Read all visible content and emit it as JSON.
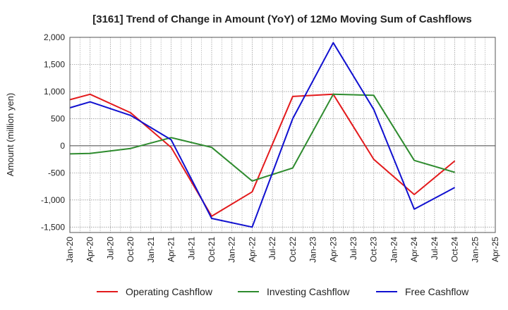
{
  "chart_data": {
    "type": "line",
    "title": "[3161]  Trend of Change in Amount (YoY) of 12Mo Moving Sum of Cashflows",
    "xlabel": "",
    "ylabel": "Amount (million yen)",
    "ylim": [
      -1600,
      2000
    ],
    "yticks": [
      2000,
      1500,
      1000,
      500,
      0,
      -500,
      -1000,
      -1500
    ],
    "ytick_labels": [
      "2,000",
      "1,500",
      "1,000",
      "500",
      "0",
      "-500",
      "-1,000",
      "-1,500"
    ],
    "categories": [
      "Jan-20",
      "Apr-20",
      "Jul-20",
      "Oct-20",
      "Jan-21",
      "Apr-21",
      "Jul-21",
      "Oct-21",
      "Jan-22",
      "Apr-22",
      "Jul-22",
      "Oct-22",
      "Jan-23",
      "Apr-23",
      "Jul-23",
      "Oct-23",
      "Jan-24",
      "Apr-24",
      "Jul-24",
      "Oct-24",
      "Jan-25",
      "Apr-25"
    ],
    "grid": true,
    "legend_position": "bottom",
    "series": [
      {
        "name": "Operating Cashflow",
        "color": "#e31a1c",
        "points": [
          {
            "x": "Jan-20",
            "y": 850
          },
          {
            "x": "Apr-20",
            "y": 950
          },
          {
            "x": "Oct-20",
            "y": 610
          },
          {
            "x": "Apr-21",
            "y": -30
          },
          {
            "x": "Oct-21",
            "y": -1300
          },
          {
            "x": "Apr-22",
            "y": -850
          },
          {
            "x": "Oct-22",
            "y": 910
          },
          {
            "x": "Apr-23",
            "y": 950
          },
          {
            "x": "Oct-23",
            "y": -250
          },
          {
            "x": "Apr-24",
            "y": -900
          },
          {
            "x": "Oct-24",
            "y": -280
          }
        ]
      },
      {
        "name": "Investing Cashflow",
        "color": "#2e8b2e",
        "points": [
          {
            "x": "Jan-20",
            "y": -150
          },
          {
            "x": "Apr-20",
            "y": -140
          },
          {
            "x": "Oct-20",
            "y": -50
          },
          {
            "x": "Apr-21",
            "y": 150
          },
          {
            "x": "Oct-21",
            "y": -30
          },
          {
            "x": "Apr-22",
            "y": -650
          },
          {
            "x": "Oct-22",
            "y": -410
          },
          {
            "x": "Apr-23",
            "y": 950
          },
          {
            "x": "Oct-23",
            "y": 930
          },
          {
            "x": "Apr-24",
            "y": -270
          },
          {
            "x": "Oct-24",
            "y": -490
          }
        ]
      },
      {
        "name": "Free Cashflow",
        "color": "#1010d0",
        "points": [
          {
            "x": "Jan-20",
            "y": 700
          },
          {
            "x": "Apr-20",
            "y": 810
          },
          {
            "x": "Oct-20",
            "y": 560
          },
          {
            "x": "Apr-21",
            "y": 110
          },
          {
            "x": "Oct-21",
            "y": -1340
          },
          {
            "x": "Apr-22",
            "y": -1500
          },
          {
            "x": "Oct-22",
            "y": 500
          },
          {
            "x": "Apr-23",
            "y": 1900
          },
          {
            "x": "Oct-23",
            "y": 670
          },
          {
            "x": "Apr-24",
            "y": -1170
          },
          {
            "x": "Oct-24",
            "y": -770
          }
        ]
      }
    ]
  }
}
